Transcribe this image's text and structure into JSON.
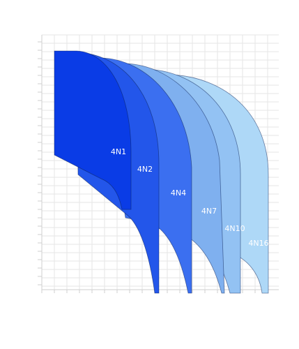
{
  "chart_data": {
    "type": "area",
    "title": "",
    "xlabel": "",
    "ylabel": "",
    "grid": true,
    "legend": "none",
    "series": [
      {
        "name": "4N1",
        "color": "#0a3ce6"
      },
      {
        "name": "4N2",
        "color": "#2356ea"
      },
      {
        "name": "4N4",
        "color": "#3b6ff0"
      },
      {
        "name": "4N7",
        "color": "#7fb0ef"
      },
      {
        "name": "4N10",
        "color": "#93c2f3"
      },
      {
        "name": "4N16",
        "color": "#aed8f7"
      }
    ]
  }
}
